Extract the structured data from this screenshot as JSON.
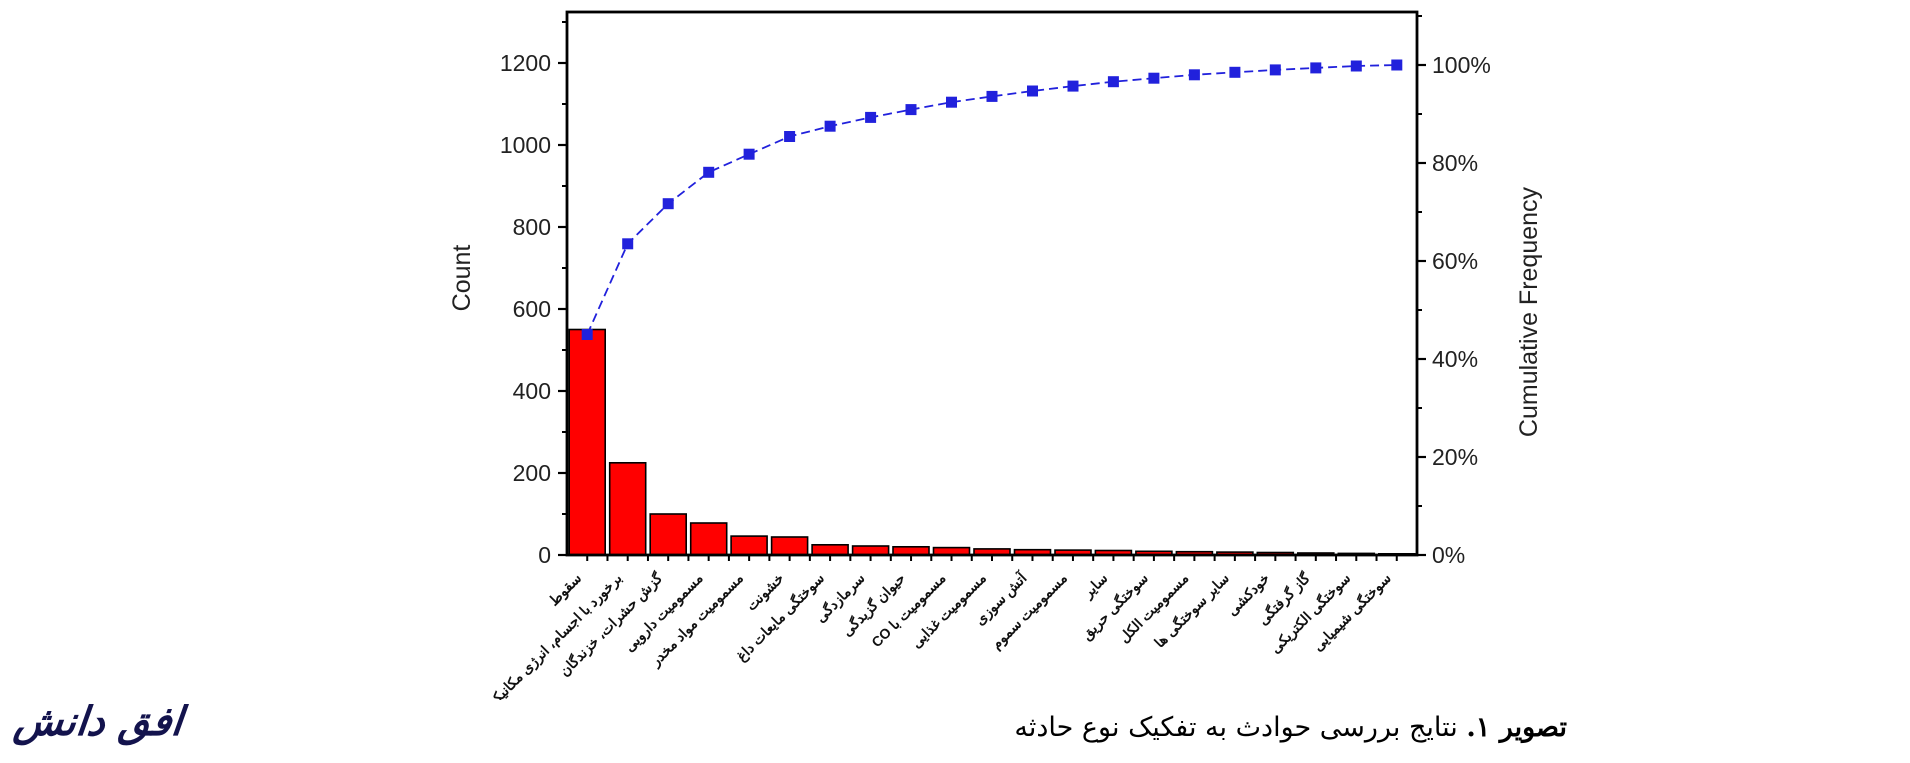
{
  "figure": {
    "caption": {
      "number": "تصویر ۱.",
      "text": " نتایج بررسی حوادث به تفکیک نوع حادثه"
    },
    "journal_logo": "افق دانش"
  },
  "chart_data": {
    "type": "pareto",
    "title": "",
    "categories": [
      "سقوط",
      "برخورد با اجسام، انرژی مکانیکی",
      "گزش حشرات، خزندگان",
      "مسمومیت دارویی",
      "مسمومیت مواد مخدر",
      "خشونت",
      "سوختگی مایعات داغ",
      "سرمازدگی",
      "حیوان گزیدگی",
      "مسمومیت با CO",
      "مسمومیت غذایی",
      "آتش سوزی",
      "مسمومیت سموم",
      "سایر",
      "سوختگی حریق",
      "مسمومیت الکل",
      "سایر سوختگی ها",
      "خودکشی",
      "گاز گرفتگی",
      "سوختگی الکتریکی",
      "سوختگی شیمیایی"
    ],
    "series": [
      {
        "name": "Count",
        "type": "bar",
        "color": "#FF0000",
        "outline_color": "#000000",
        "values": [
          550,
          225,
          100,
          78,
          46,
          44,
          25,
          22,
          20,
          18,
          15,
          13,
          12,
          11,
          9,
          8,
          7,
          6,
          5,
          4,
          3
        ]
      },
      {
        "name": "Cumulative Frequency",
        "type": "line",
        "style": "dashed",
        "marker": "filled-square",
        "color": "#2121DC",
        "values_pct": [
          45.0,
          63.5,
          71.7,
          78.1,
          81.8,
          85.4,
          87.5,
          89.3,
          90.9,
          92.4,
          93.6,
          94.7,
          95.7,
          96.6,
          97.3,
          98.0,
          98.5,
          99.0,
          99.4,
          99.8,
          100.0
        ]
      }
    ],
    "left_axis": {
      "label": "Count",
      "min": 0,
      "max": 1355,
      "major_ticks": [
        0,
        200,
        400,
        600,
        800,
        1000,
        1200
      ],
      "minor_step": 100
    },
    "right_axis": {
      "label": "Cumulative Frequency",
      "min_pct": 0,
      "max_pct": 110,
      "major_tick_labels": [
        "0%",
        "20%",
        "40%",
        "60%",
        "80%",
        "100%"
      ],
      "major_step_pct": 20,
      "minor_step_pct": 10
    },
    "grid": false,
    "legend": "none",
    "axis_color": "#000000",
    "tick_label_color": "#222222",
    "category_label_color": "#111111",
    "background": "#FFFFFF"
  }
}
